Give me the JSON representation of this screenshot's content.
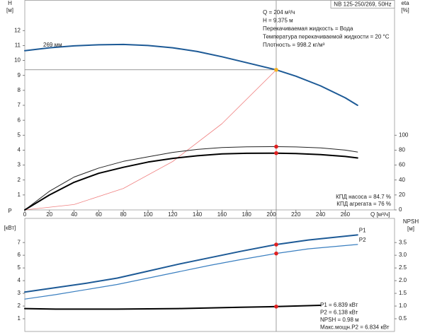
{
  "chart_data": [
    {
      "type": "line",
      "title": "NB 125-250/269, 50Hz",
      "info": [
        "Q = 204 м³/ч",
        "H = 9.375 м",
        "Перекачиваемая жидкость = Вода",
        "Температура перекачиваемой жидкости = 20 °C",
        "Плотность = 998.2 кг/м³"
      ],
      "efficiency_notes": [
        "КПД насоса = 84.7 %",
        "КПД агрегата = 76 %"
      ],
      "xlabel": "Q [м³/ч]",
      "ylabel": "H",
      "yunit": "[м]",
      "y2label": "eta",
      "y2unit": "[%]",
      "xlim": [
        0,
        300
      ],
      "xticks": [
        0,
        20,
        40,
        60,
        80,
        100,
        120,
        140,
        160,
        180,
        200,
        220,
        240,
        260
      ],
      "ylim": [
        0,
        14
      ],
      "yticks": [
        1,
        2,
        3,
        4,
        5,
        6,
        7,
        8,
        9,
        10,
        11,
        12
      ],
      "y2lim": [
        0,
        280
      ],
      "y2ticks": [
        0,
        20,
        40,
        60,
        80,
        100
      ],
      "series": [
        {
          "name": "269 мм",
          "label_position": "start",
          "color": "#1d5a96",
          "line_width": 2,
          "x": [
            0,
            20,
            40,
            60,
            80,
            100,
            120,
            140,
            160,
            180,
            204,
            220,
            240,
            260,
            270
          ],
          "values": [
            10.65,
            10.85,
            10.98,
            11.05,
            11.07,
            11.0,
            10.85,
            10.6,
            10.25,
            9.85,
            9.375,
            8.95,
            8.3,
            7.5,
            7.0
          ],
          "highlight_x": 204,
          "highlight_color": "#f5b021",
          "guides": true
        },
        {
          "color": "#f08080",
          "line_width": 0.8,
          "x": [
            0,
            40,
            80,
            120,
            160,
            204
          ],
          "values": [
            0,
            0.36,
            1.44,
            3.24,
            5.77,
            9.375
          ]
        },
        {
          "color": "#222222",
          "line_width": 1,
          "axis": "y2",
          "x": [
            0,
            20,
            40,
            60,
            80,
            100,
            120,
            140,
            160,
            180,
            204,
            220,
            240,
            260,
            270
          ],
          "values": [
            0,
            25,
            44,
            56,
            65,
            71,
            77,
            81,
            83.5,
            84.5,
            84.7,
            84.3,
            83,
            80,
            77.5
          ],
          "highlight_x": 204,
          "highlight_color": "#e02020"
        },
        {
          "color": "#000000",
          "line_width": 2,
          "axis": "y2",
          "x": [
            0,
            20,
            40,
            60,
            80,
            100,
            120,
            140,
            160,
            180,
            204,
            220,
            240,
            260,
            270
          ],
          "values": [
            0,
            20,
            37,
            49,
            57,
            64,
            69,
            72.5,
            75,
            75.8,
            76,
            75.5,
            74,
            71.5,
            69.5
          ],
          "highlight_x": 204,
          "highlight_color": "#e02020"
        }
      ]
    },
    {
      "type": "line",
      "notes": [
        "P1 = 6.839 кВт",
        "P2 = 6.138 кВт",
        "NPSH = 0.98 м",
        "Макс.мощн.P2 = 6.834 кВт"
      ],
      "ylabel": "P",
      "yunit": "[кВт]",
      "y2label": "NPSH",
      "y2unit": "[м]",
      "xlim": [
        0,
        300
      ],
      "ylim": [
        0,
        8.9
      ],
      "yticks": [
        1,
        2,
        3,
        4,
        5,
        6,
        7
      ],
      "y2lim": [
        0,
        4.45
      ],
      "y2ticks": [
        0.5,
        {
          "value": 1,
          "label": "1.0"
        },
        1.5,
        {
          "value": 2,
          "label": "2.0"
        },
        2.5,
        {
          "value": 3,
          "label": "3.0"
        },
        3.5
      ],
      "series": [
        {
          "name": "P1",
          "label_position": "end",
          "color": "#1d5a96",
          "line_width": 2,
          "x": [
            0,
            25,
            50,
            75,
            100,
            125,
            150,
            175,
            204,
            230,
            270
          ],
          "values": [
            3.1,
            3.45,
            3.8,
            4.2,
            4.75,
            5.3,
            5.8,
            6.3,
            6.84,
            7.2,
            7.6
          ],
          "highlight_x": 204,
          "highlight_color": "#e02020"
        },
        {
          "name": "P2",
          "label_position": "end",
          "color": "#3a7fc0",
          "line_width": 1.2,
          "x": [
            0,
            25,
            50,
            75,
            100,
            125,
            150,
            175,
            204,
            230,
            270
          ],
          "values": [
            2.55,
            2.9,
            3.3,
            3.7,
            4.2,
            4.7,
            5.2,
            5.65,
            6.14,
            6.5,
            6.85
          ],
          "highlight_x": 204,
          "highlight_color": "#e02020"
        },
        {
          "color": "#000000",
          "line_width": 2,
          "axis": "y2",
          "x": [
            0,
            25,
            75,
            125,
            175,
            204,
            240
          ],
          "values": [
            0.9,
            0.88,
            0.88,
            0.9,
            0.95,
            0.98,
            1.03
          ],
          "highlight_x": 204,
          "highlight_color": "#e02020"
        }
      ]
    }
  ]
}
